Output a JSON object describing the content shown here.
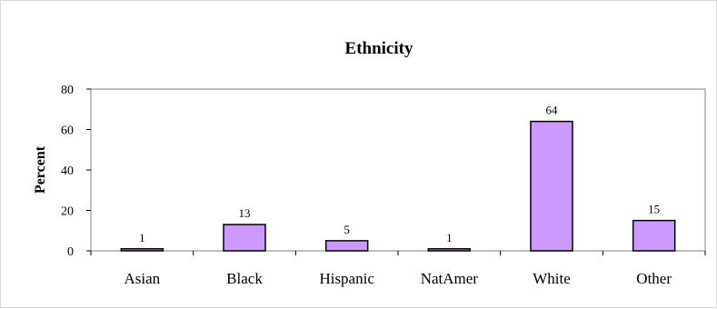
{
  "chart_data": {
    "type": "bar",
    "title": "Ethnicity",
    "xlabel": "",
    "ylabel": "Percent",
    "categories": [
      "Asian",
      "Black",
      "Hispanic",
      "NatAmer",
      "White",
      "Other"
    ],
    "values": [
      1,
      13,
      5,
      1,
      64,
      15
    ],
    "data_labels": [
      "1",
      "13",
      "5",
      "1",
      "64",
      "15"
    ],
    "ylim": [
      0,
      80
    ],
    "yticks": [
      "0",
      "20",
      "40",
      "60",
      "80"
    ],
    "grid": false,
    "legend": "none",
    "bar_color": "#cc99ff",
    "bar_outline_color": "#000000",
    "plot_border_color": "#808080"
  }
}
